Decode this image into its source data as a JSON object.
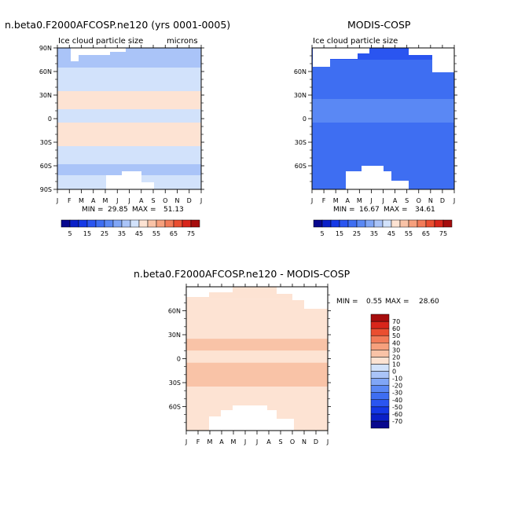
{
  "chart_data": [
    {
      "type": "heatmap",
      "title": "n.beta0.F2000AFCOSP.ne120 (yrs 0001-0005)",
      "subtitle": "Ice cloud particle size",
      "units": "microns",
      "x_ticks": [
        "J",
        "F",
        "M",
        "A",
        "M",
        "J",
        "J",
        "A",
        "S",
        "O",
        "N",
        "D",
        "J"
      ],
      "y_ticks": [
        "90N",
        "60N",
        "30N",
        "0",
        "30S",
        "60S",
        "90S"
      ],
      "stats": {
        "min_label": "MIN =",
        "min": "29.85",
        "max_label": "MAX =",
        "max": "51.13"
      },
      "colorbar": {
        "levels": [
          5,
          10,
          15,
          20,
          25,
          30,
          35,
          40,
          45,
          50,
          55,
          60,
          65,
          70,
          75
        ],
        "tick_labels": [
          "5",
          "15",
          "25",
          "35",
          "45",
          "55",
          "65",
          "75"
        ]
      },
      "latitude_bands": [
        {
          "lat": [
            65,
            90
          ],
          "value": 36
        },
        {
          "lat": [
            45,
            65
          ],
          "value": 42
        },
        {
          "lat": [
            35,
            45
          ],
          "value": 44
        },
        {
          "lat": [
            12,
            35
          ],
          "value": 47
        },
        {
          "lat": [
            -5,
            12
          ],
          "value": 42
        },
        {
          "lat": [
            -35,
            -5
          ],
          "value": 47
        },
        {
          "lat": [
            -58,
            -35
          ],
          "value": 42
        },
        {
          "lat": [
            -72,
            -58
          ],
          "value": 37
        },
        {
          "lat": [
            -90,
            -72
          ],
          "value": 42
        }
      ]
    },
    {
      "type": "heatmap",
      "title": "MODIS-COSP",
      "subtitle": "Ice cloud particle size",
      "x_ticks": [
        "J",
        "F",
        "M",
        "A",
        "M",
        "J",
        "J",
        "A",
        "S",
        "O",
        "N",
        "D",
        "J"
      ],
      "y_ticks": [
        "60N",
        "30N",
        "0",
        "30S",
        "60S"
      ],
      "stats": {
        "min_label": "MIN =",
        "min": "16.67",
        "max_label": "MAX =",
        "max": "34.61"
      },
      "colorbar": {
        "levels": [
          5,
          10,
          15,
          20,
          25,
          30,
          35,
          40,
          45,
          50,
          55,
          60,
          65,
          70,
          75
        ],
        "tick_labels": [
          "5",
          "15",
          "25",
          "35",
          "45",
          "55",
          "65",
          "75"
        ]
      },
      "latitude_bands": [
        {
          "lat": [
            75,
            90
          ],
          "value": 17
        },
        {
          "lat": [
            40,
            75
          ],
          "value": 21
        },
        {
          "lat": [
            25,
            40
          ],
          "value": 24
        },
        {
          "lat": [
            -5,
            25
          ],
          "value": 27
        },
        {
          "lat": [
            -40,
            -5
          ],
          "value": 24
        },
        {
          "lat": [
            -70,
            -40
          ],
          "value": 21
        },
        {
          "lat": [
            -90,
            -70
          ],
          "value": 24
        }
      ]
    },
    {
      "type": "heatmap",
      "title": "n.beta0.F2000AFCOSP.ne120 - MODIS-COSP",
      "x_ticks": [
        "J",
        "F",
        "M",
        "A",
        "M",
        "J",
        "J",
        "A",
        "S",
        "O",
        "N",
        "D",
        "J"
      ],
      "y_ticks": [
        "60N",
        "30N",
        "0",
        "30S",
        "60S"
      ],
      "stats": {
        "min_label": "MIN =",
        "min": "0.55",
        "max_label": "MAX =",
        "max": "28.60"
      },
      "colorbar": {
        "levels": [
          -70,
          -60,
          -50,
          -40,
          -30,
          -20,
          -10,
          0,
          10,
          20,
          30,
          40,
          50,
          60,
          70
        ],
        "tick_labels": [
          "-70",
          "-60",
          "-50",
          "-40",
          "-30",
          "-20",
          "-10",
          "0",
          "10",
          "20",
          "30",
          "40",
          "50",
          "60",
          "70"
        ]
      },
      "latitude_bands": [
        {
          "lat": [
            75,
            90
          ],
          "value": 15
        },
        {
          "lat": [
            25,
            75
          ],
          "value": 17
        },
        {
          "lat": [
            10,
            25
          ],
          "value": 23
        },
        {
          "lat": [
            -5,
            10
          ],
          "value": 17
        },
        {
          "lat": [
            -35,
            -5
          ],
          "value": 23
        },
        {
          "lat": [
            -90,
            -35
          ],
          "value": 17
        }
      ]
    }
  ]
}
